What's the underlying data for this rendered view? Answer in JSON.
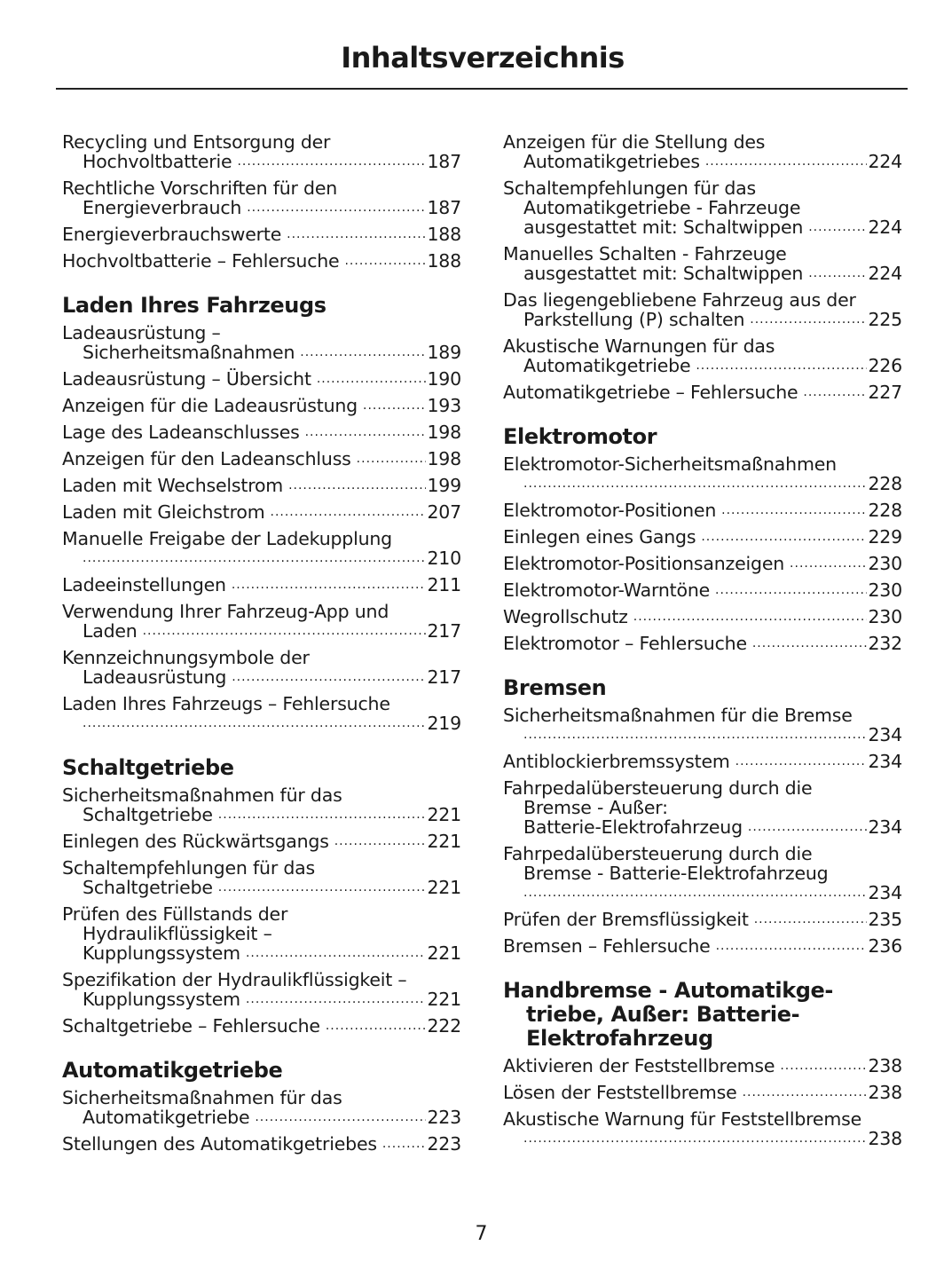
{
  "title": "Inhaltsverzeichnis",
  "page_number": "7",
  "columns": [
    [
      {
        "heading": null,
        "entries": [
          {
            "lines": [
              "Recycling und Entsorgung der",
              "Hochvoltbatterie"
            ],
            "page": "187"
          },
          {
            "lines": [
              "Rechtliche Vorschriften für den",
              "Energieverbrauch"
            ],
            "page": "187"
          },
          {
            "lines": [
              "Energieverbrauchswerte"
            ],
            "page": "188"
          },
          {
            "lines": [
              "Hochvoltbatterie – Fehlersuche"
            ],
            "page": "188"
          }
        ]
      },
      {
        "heading": "Laden Ihres Fahrzeugs",
        "entries": [
          {
            "lines": [
              "Ladeausrüstung –",
              "Sicherheitsmaßnahmen"
            ],
            "page": "189"
          },
          {
            "lines": [
              "Ladeausrüstung – Übersicht"
            ],
            "page": "190"
          },
          {
            "lines": [
              "Anzeigen für die Ladeausrüstung"
            ],
            "page": "193"
          },
          {
            "lines": [
              "Lage des Ladeanschlusses"
            ],
            "page": "198"
          },
          {
            "lines": [
              "Anzeigen für den Ladeanschluss"
            ],
            "page": "198"
          },
          {
            "lines": [
              "Laden mit Wechselstrom"
            ],
            "page": "199"
          },
          {
            "lines": [
              "Laden mit Gleichstrom"
            ],
            "page": "207"
          },
          {
            "lines": [
              "Manuelle Freigabe der Ladekupplung",
              ""
            ],
            "page": "210"
          },
          {
            "lines": [
              "Ladeeinstellungen"
            ],
            "page": "211"
          },
          {
            "lines": [
              "Verwendung Ihrer Fahrzeug-App und",
              "Laden"
            ],
            "page": "217"
          },
          {
            "lines": [
              "Kennzeichnungsymbole der",
              "Ladeausrüstung"
            ],
            "page": "217"
          },
          {
            "lines": [
              "Laden Ihres Fahrzeugs – Fehlersuche",
              ""
            ],
            "page": "219"
          }
        ]
      },
      {
        "heading": "Schaltgetriebe",
        "entries": [
          {
            "lines": [
              "Sicherheitsmaßnahmen für das",
              "Schaltgetriebe"
            ],
            "page": "221"
          },
          {
            "lines": [
              "Einlegen des Rückwärtsgangs"
            ],
            "page": "221"
          },
          {
            "lines": [
              "Schaltempfehlungen für das",
              "Schaltgetriebe"
            ],
            "page": "221"
          },
          {
            "lines": [
              "Prüfen des Füllstands der",
              "Hydraulikflüssigkeit –",
              "Kupplungssystem"
            ],
            "page": "221"
          },
          {
            "lines": [
              "Spezifikation der Hydraulikflüssigkeit –",
              "Kupplungssystem"
            ],
            "page": "221"
          },
          {
            "lines": [
              "Schaltgetriebe – Fehlersuche"
            ],
            "page": "222"
          }
        ]
      },
      {
        "heading": "Automatikgetriebe",
        "entries": [
          {
            "lines": [
              "Sicherheitsmaßnahmen für das",
              "Automatikgetriebe"
            ],
            "page": "223"
          },
          {
            "lines": [
              "Stellungen des Automatikgetriebes"
            ],
            "page": "223"
          }
        ]
      }
    ],
    [
      {
        "heading": null,
        "entries": [
          {
            "lines": [
              "Anzeigen für die Stellung des",
              "Automatikgetriebes"
            ],
            "page": "224"
          },
          {
            "lines": [
              "Schaltempfehlungen für das",
              "Automatikgetriebe - Fahrzeuge",
              "ausgestattet mit: Schaltwippen"
            ],
            "page": "224"
          },
          {
            "lines": [
              "Manuelles Schalten - Fahrzeuge",
              "ausgestattet mit: Schaltwippen"
            ],
            "page": "224"
          },
          {
            "lines": [
              "Das liegengebliebene Fahrzeug aus der",
              "Parkstellung (P) schalten"
            ],
            "page": "225"
          },
          {
            "lines": [
              "Akustische Warnungen für das",
              "Automatikgetriebe"
            ],
            "page": "226"
          },
          {
            "lines": [
              "Automatikgetriebe – Fehlersuche"
            ],
            "page": "227"
          }
        ]
      },
      {
        "heading": "Elektromotor",
        "entries": [
          {
            "lines": [
              "Elektromotor-Sicherheitsmaßnahmen",
              ""
            ],
            "page": "228"
          },
          {
            "lines": [
              "Elektromotor-Positionen"
            ],
            "page": "228"
          },
          {
            "lines": [
              "Einlegen eines Gangs"
            ],
            "page": "229"
          },
          {
            "lines": [
              "Elektromotor-Positionsanzeigen"
            ],
            "page": "230"
          },
          {
            "lines": [
              "Elektromotor-Warntöne"
            ],
            "page": "230"
          },
          {
            "lines": [
              "Wegrollschutz"
            ],
            "page": "230"
          },
          {
            "lines": [
              "Elektromotor – Fehlersuche"
            ],
            "page": "232"
          }
        ]
      },
      {
        "heading": "Bremsen",
        "entries": [
          {
            "lines": [
              "Sicherheitsmaßnahmen für die Bremse",
              ""
            ],
            "page": "234"
          },
          {
            "lines": [
              "Antiblockierbremssystem"
            ],
            "page": "234"
          },
          {
            "lines": [
              "Fahrpedalübersteuerung durch die",
              "Bremse - Außer:",
              "Batterie-Elektrofahrzeug"
            ],
            "page": "234"
          },
          {
            "lines": [
              "Fahrpedalübersteuerung durch die",
              "Bremse - Batterie-Elektrofahrzeug",
              ""
            ],
            "page": "234"
          },
          {
            "lines": [
              "Prüfen der Bremsflüssigkeit"
            ],
            "page": "235"
          },
          {
            "lines": [
              "Bremsen – Fehlersuche"
            ],
            "page": "236"
          }
        ]
      },
      {
        "heading": "Handbremse - Automatikge-triebe, Außer: Batterie-Elektrofahrzeug",
        "entries": [
          {
            "lines": [
              "Aktivieren der Feststellbremse"
            ],
            "page": "238"
          },
          {
            "lines": [
              "Lösen der Feststellbremse"
            ],
            "page": "238"
          },
          {
            "lines": [
              "Akustische Warnung für Feststellbremse",
              ""
            ],
            "page": "238"
          }
        ]
      }
    ]
  ]
}
